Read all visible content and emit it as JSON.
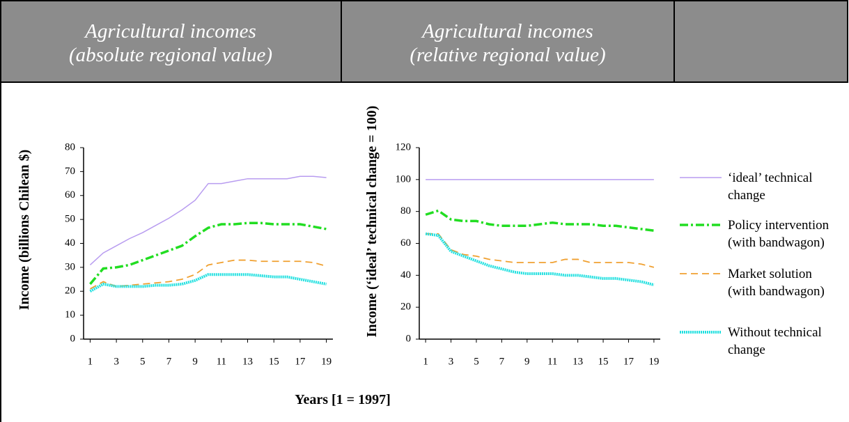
{
  "header": [
    {
      "title": "Agricultural incomes",
      "subtitle": "(absolute regional value)"
    },
    {
      "title": "Agricultural incomes",
      "subtitle": "(relative regional value)"
    }
  ],
  "chart_data": [
    {
      "type": "line",
      "ylabel": "Income  (billions Chilean $)",
      "xlabel": "Years [1 = 1997]",
      "x": [
        1,
        2,
        3,
        4,
        5,
        6,
        7,
        8,
        9,
        10,
        11,
        12,
        13,
        14,
        15,
        16,
        17,
        18,
        19
      ],
      "xlim": [
        0.5,
        19.5
      ],
      "xticks": [
        1,
        3,
        5,
        7,
        9,
        11,
        13,
        15,
        17,
        19
      ],
      "ylim": [
        0,
        80
      ],
      "yticks": [
        0,
        10,
        20,
        30,
        40,
        50,
        60,
        70,
        80
      ],
      "series": [
        {
          "color": "#b89cf0",
          "dash": "solid",
          "values": [
            31,
            36,
            39,
            42,
            44.5,
            47.5,
            50.5,
            54,
            58,
            65,
            65,
            66,
            67,
            67,
            67,
            67,
            68,
            68,
            67.5
          ]
        },
        {
          "color": "#22dd22",
          "dash": "dashdot",
          "values": [
            23,
            29.5,
            30,
            31,
            33,
            35,
            37,
            39,
            43,
            46.5,
            48,
            48,
            48.5,
            48.5,
            48,
            48,
            48,
            47,
            46
          ]
        },
        {
          "color": "#f0a030",
          "dash": "dashed",
          "values": [
            21,
            24,
            22,
            22.5,
            23,
            23.5,
            24,
            25,
            27,
            31,
            32,
            33,
            33,
            32.5,
            32.5,
            32.5,
            32.5,
            32,
            30.5
          ]
        },
        {
          "color": "#22e0e0",
          "dash": "dotted",
          "values": [
            20,
            23,
            22,
            22,
            22,
            22.5,
            22.5,
            23,
            24.5,
            27,
            27,
            27,
            27,
            26.5,
            26,
            26,
            25,
            24,
            23
          ]
        }
      ]
    },
    {
      "type": "line",
      "ylabel": "Income (‘ideal’ technical change = 100)",
      "x": [
        1,
        2,
        3,
        4,
        5,
        6,
        7,
        8,
        9,
        10,
        11,
        12,
        13,
        14,
        15,
        16,
        17,
        18,
        19
      ],
      "xlim": [
        0.5,
        19.5
      ],
      "xticks": [
        1,
        3,
        5,
        7,
        9,
        11,
        13,
        15,
        17,
        19
      ],
      "ylim": [
        0,
        120
      ],
      "yticks": [
        0,
        20,
        40,
        60,
        80,
        100,
        120
      ],
      "legend": "right",
      "series": [
        {
          "name": "‘ideal’ technical change",
          "color": "#b89cf0",
          "dash": "solid",
          "values": [
            100,
            100,
            100,
            100,
            100,
            100,
            100,
            100,
            100,
            100,
            100,
            100,
            100,
            100,
            100,
            100,
            100,
            100,
            100
          ]
        },
        {
          "name": "Policy intervention (with bandwagon)",
          "color": "#22dd22",
          "dash": "dashdot",
          "values": [
            78,
            80.5,
            75,
            74,
            74,
            72,
            71,
            71,
            71,
            72,
            73,
            72,
            72,
            72,
            71,
            71,
            70,
            69,
            68
          ]
        },
        {
          "name": "Market solution (with bandwagon)",
          "color": "#f0a030",
          "dash": "dashed",
          "values": [
            66,
            66,
            56,
            53,
            52,
            50,
            49,
            48,
            48,
            48,
            48,
            50,
            50,
            48,
            48,
            48,
            48,
            47,
            45
          ]
        },
        {
          "name": "Without technical change",
          "color": "#22e0e0",
          "dash": "dotted",
          "values": [
            66,
            65,
            55,
            52,
            49,
            46,
            44,
            42,
            41,
            41,
            41,
            40,
            40,
            39,
            38,
            38,
            37,
            36,
            34
          ]
        }
      ]
    }
  ]
}
